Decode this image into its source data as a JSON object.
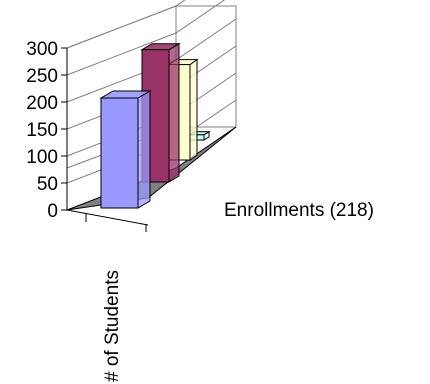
{
  "chart_data": {
    "type": "bar",
    "subtype": "3d-column",
    "categories": [
      "",
      "",
      "",
      ""
    ],
    "series": [
      {
        "values": [
          220,
          245,
          180,
          10
        ]
      }
    ],
    "colors": [
      "#9999ff",
      "#993366",
      "#ffffcc",
      "#ccffff"
    ],
    "y_ticks": [
      "300",
      "250",
      "200",
      "150",
      "100",
      "50",
      "0"
    ],
    "ylim": [
      0,
      300
    ],
    "xlabel": "# of Students",
    "legend_text": "Enrollments (218)",
    "grid": true
  }
}
